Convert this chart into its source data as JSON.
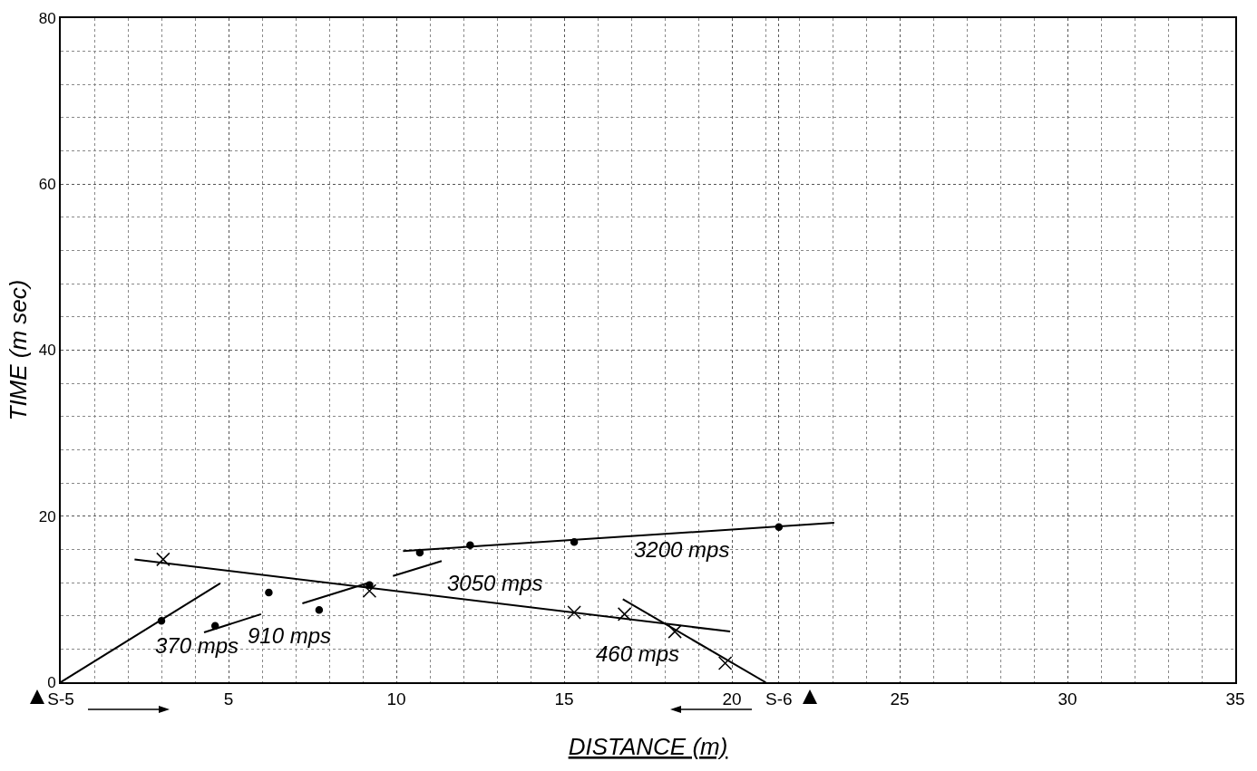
{
  "chart_data": {
    "type": "scatter",
    "xlabel": "DISTANCE (m)",
    "ylabel": "TIME (m sec)",
    "xlim": [
      0,
      35
    ],
    "xticks": [
      {
        "value": 0,
        "label": "S-5"
      },
      5,
      10,
      15,
      20,
      {
        "value": 21.4,
        "label": "S-6"
      },
      25,
      30,
      35
    ],
    "ylim": [
      0,
      80
    ],
    "yticks": [
      0,
      20,
      40,
      60,
      80
    ],
    "grid": true,
    "series": [
      {
        "marker": "circle",
        "color": "#000000",
        "x": [
          3.0,
          4.6,
          6.2,
          7.7,
          9.2,
          10.7,
          12.2,
          15.3,
          21.4
        ],
        "values": [
          7.4,
          6.8,
          10.8,
          8.7,
          11.7,
          15.6,
          16.5,
          16.9,
          18.7
        ]
      },
      {
        "marker": "cross",
        "color": "#000000",
        "x": [
          3.05,
          9.2,
          15.3,
          16.8,
          18.3,
          19.8
        ],
        "values": [
          14.8,
          11.0,
          8.4,
          8.2,
          6.1,
          2.3
        ]
      },
      {
        "type": "line",
        "name": "370 mps",
        "marker": "none",
        "line_style": "solid",
        "color": "#000000",
        "x": [
          0,
          4.75
        ],
        "values": [
          0,
          11.9
        ]
      },
      {
        "type": "line",
        "name": "910 mps",
        "marker": "none",
        "line_style": "solid",
        "color": "#000000",
        "x": [
          4.27,
          5.97,
          null,
          7.2,
          9.2,
          null,
          9.9,
          11.35
        ],
        "values": [
          6.0,
          8.2,
          null,
          9.5,
          12.0,
          null,
          12.8,
          14.6
        ]
      },
      {
        "type": "line",
        "name": "3200 mps",
        "marker": "none",
        "line_style": "solid",
        "color": "#000000",
        "x": [
          10.2,
          23.05
        ],
        "values": [
          15.8,
          19.2
        ]
      },
      {
        "type": "line",
        "name": "3050 mps",
        "marker": "none",
        "line_style": "solid",
        "color": "#000000",
        "x": [
          2.2,
          19.95
        ],
        "values": [
          14.8,
          6.1
        ]
      },
      {
        "type": "line",
        "name": "460 mps",
        "marker": "none",
        "line_style": "solid",
        "color": "#000000",
        "x": [
          16.75,
          21.0
        ],
        "values": [
          10.0,
          0
        ]
      }
    ]
  }
}
